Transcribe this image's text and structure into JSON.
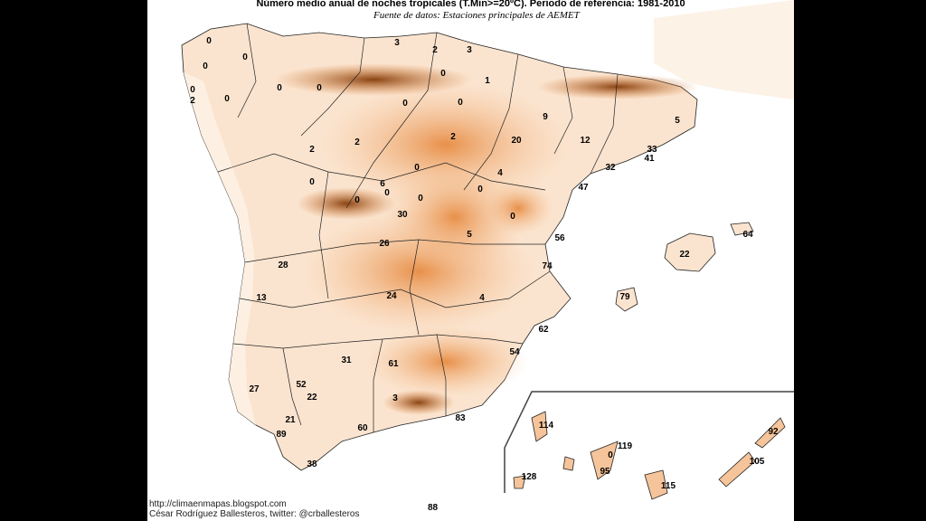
{
  "map": {
    "title": "Número medio anual de noches tropicales (T.Min>=20ºC). Periodo de referencia: 1981-2010",
    "source": "Fuente de datos: Estaciones principales de AEMET",
    "credit_url": "http://climaenmapas.blogspot.com",
    "credit_author": "César Rodríguez Ballesteros, twitter: @crballesteros",
    "bottom_value": "88",
    "colors": {
      "background": "#ffffff",
      "low": "#fbe6d2",
      "mid": "#f0a060",
      "high": "#d36a1c",
      "peak": "#6b3510",
      "border": "#111111"
    },
    "stations": [
      {
        "v": "0"
      },
      {
        "v": "0"
      },
      {
        "v": "0"
      },
      {
        "v": "0"
      },
      {
        "v": "2"
      },
      {
        "v": "0"
      },
      {
        "v": "0"
      },
      {
        "v": "3"
      },
      {
        "v": "2"
      },
      {
        "v": "3"
      },
      {
        "v": "0"
      },
      {
        "v": "1"
      },
      {
        "v": "0"
      },
      {
        "v": "0"
      },
      {
        "v": "0"
      },
      {
        "v": "2"
      },
      {
        "v": "9"
      },
      {
        "v": "5"
      },
      {
        "v": "2"
      },
      {
        "v": "2"
      },
      {
        "v": "0"
      },
      {
        "v": "20"
      },
      {
        "v": "12"
      },
      {
        "v": "33"
      },
      {
        "v": "41"
      },
      {
        "v": "32"
      },
      {
        "v": "4"
      },
      {
        "v": "0"
      },
      {
        "v": "6"
      },
      {
        "v": "0"
      },
      {
        "v": "0"
      },
      {
        "v": "0"
      },
      {
        "v": "0"
      },
      {
        "v": "47"
      },
      {
        "v": "30"
      },
      {
        "v": "0"
      },
      {
        "v": "5"
      },
      {
        "v": "26"
      },
      {
        "v": "56"
      },
      {
        "v": "64"
      },
      {
        "v": "28"
      },
      {
        "v": "22"
      },
      {
        "v": "74"
      },
      {
        "v": "13"
      },
      {
        "v": "24"
      },
      {
        "v": "4"
      },
      {
        "v": "79"
      },
      {
        "v": "62"
      },
      {
        "v": "54"
      },
      {
        "v": "31"
      },
      {
        "v": "61"
      },
      {
        "v": "27"
      },
      {
        "v": "52"
      },
      {
        "v": "22"
      },
      {
        "v": "3"
      },
      {
        "v": "21"
      },
      {
        "v": "83"
      },
      {
        "v": "60"
      },
      {
        "v": "89"
      },
      {
        "v": "38"
      },
      {
        "v": "114"
      },
      {
        "v": "119"
      },
      {
        "v": "92"
      },
      {
        "v": "0"
      },
      {
        "v": "95"
      },
      {
        "v": "105"
      },
      {
        "v": "128"
      },
      {
        "v": "115"
      }
    ]
  }
}
